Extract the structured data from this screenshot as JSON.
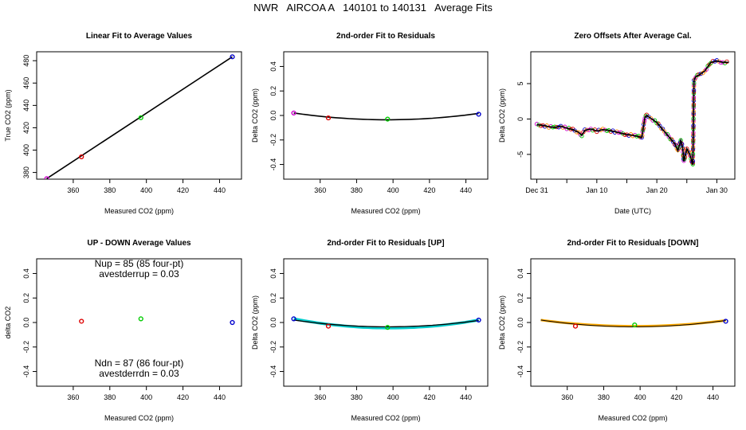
{
  "page": {
    "title": "NWR   AIRCOA A   140101 to 140131   Average Fits"
  },
  "chart_data": [
    {
      "id": "p1",
      "type": "scatter",
      "title": "Linear Fit to Average Values",
      "xlabel": "Measured CO2 (ppm)",
      "ylabel": "True CO2 (ppm)",
      "xlim": [
        340,
        452
      ],
      "ylim": [
        374,
        488
      ],
      "xticks": [
        360,
        380,
        400,
        420,
        440
      ],
      "xticklabels": [
        "360",
        "380",
        "400",
        "420",
        "440"
      ],
      "yticks": [
        380,
        400,
        420,
        440,
        460,
        480
      ],
      "yticklabels": [
        "380",
        "400",
        "420",
        "440",
        "460",
        "480"
      ],
      "lines": [
        {
          "name": "linear fit",
          "color": "#000000",
          "x": [
            345.5,
            447.0
          ],
          "y": [
            374.5,
            483.5
          ]
        }
      ],
      "points": [
        {
          "x": 345.5,
          "y": 374.5,
          "color": "#cc00cc"
        },
        {
          "x": 364.5,
          "y": 394.0,
          "color": "#dd0000"
        },
        {
          "x": 397.0,
          "y": 429.0,
          "color": "#00cc00"
        },
        {
          "x": 447.0,
          "y": 483.5,
          "color": "#0000cc"
        }
      ]
    },
    {
      "id": "p2",
      "type": "scatter",
      "title": "2nd-order Fit to Residuals",
      "xlabel": "Measured CO2 (ppm)",
      "ylabel": "Delta CO2 (ppm)",
      "xlim": [
        340,
        452
      ],
      "ylim": [
        -0.52,
        0.52
      ],
      "xticks": [
        360,
        380,
        400,
        420,
        440
      ],
      "xticklabels": [
        "360",
        "380",
        "400",
        "420",
        "440"
      ],
      "yticks": [
        -0.4,
        -0.2,
        0.0,
        0.2,
        0.4
      ],
      "yticklabels": [
        "-0.4",
        "-0.2",
        "0.0",
        "0.2",
        "0.4"
      ],
      "curves": [
        {
          "name": "2nd-order fit",
          "color": "#000000",
          "width": 1.6,
          "x": [
            345.5,
            447.0
          ],
          "y_end": [
            0.02,
            0.01
          ],
          "vertex_x": 397.0,
          "vertex_y": -0.035
        }
      ],
      "points": [
        {
          "x": 345.5,
          "y": 0.02,
          "color": "#cc00cc"
        },
        {
          "x": 364.5,
          "y": -0.02,
          "color": "#dd0000"
        },
        {
          "x": 397.0,
          "y": -0.03,
          "color": "#00cc00"
        },
        {
          "x": 447.0,
          "y": 0.01,
          "color": "#0000cc"
        }
      ]
    },
    {
      "id": "p3",
      "type": "line",
      "title": "Zero Offsets After Average Cal.",
      "xlabel": "Date (UTC)",
      "ylabel": "Delta CO2 (ppm)",
      "xlim": [
        -1,
        33
      ],
      "ylim": [
        -8.5,
        9.5
      ],
      "xticks": [
        0,
        10,
        20,
        30
      ],
      "xticklabels": [
        "Dec 31",
        "Jan 10",
        "Jan 20",
        "Jan 30"
      ],
      "minor_xticks": [
        5,
        15,
        25
      ],
      "yticks": [
        -5,
        0,
        5
      ],
      "yticklabels": [
        "-5",
        "0",
        "5"
      ],
      "series": [
        {
          "name": "zero offset",
          "color": "#000000",
          "x": [
            0,
            1,
            2,
            3,
            4,
            5,
            6,
            7,
            7.5,
            8,
            9,
            10,
            11,
            12,
            13,
            14,
            15,
            16,
            17,
            17.5,
            18,
            18.3,
            19,
            20,
            21,
            22,
            23,
            23.5,
            24,
            24.3,
            24.5,
            25,
            25.5,
            26,
            26.2,
            26.5,
            27,
            28,
            29,
            30,
            31,
            32
          ],
          "y": [
            -0.8,
            -0.9,
            -1.1,
            -1.2,
            -1.0,
            -1.3,
            -1.5,
            -1.9,
            -2.3,
            -1.6,
            -1.4,
            -1.7,
            -1.5,
            -1.6,
            -1.8,
            -2.0,
            -2.2,
            -2.3,
            -2.5,
            -2.6,
            0.2,
            0.5,
            0.1,
            -0.5,
            -1.5,
            -2.5,
            -3.5,
            -4.5,
            -3.0,
            -4.0,
            -6.0,
            -4.2,
            -5.0,
            -6.5,
            5.5,
            6.0,
            6.2,
            6.8,
            8.0,
            8.2,
            8.0,
            8.0
          ]
        }
      ],
      "overlay_points": {
        "colors": [
          "#cc00cc",
          "#00cc00",
          "#dd0000",
          "#0000cc",
          "#ff8800"
        ]
      }
    },
    {
      "id": "p4",
      "type": "scatter",
      "title": "UP - DOWN Average Values",
      "xlabel": "Measured CO2 (ppm)",
      "ylabel": "delta CO2",
      "xlim": [
        340,
        452
      ],
      "ylim": [
        -0.52,
        0.52
      ],
      "xticks": [
        360,
        380,
        400,
        420,
        440
      ],
      "xticklabels": [
        "360",
        "380",
        "400",
        "420",
        "440"
      ],
      "yticks": [
        -0.4,
        -0.2,
        0.0,
        0.2,
        0.4
      ],
      "yticklabels": [
        "-0.4",
        "-0.2",
        "0.0",
        "0.2",
        "0.4"
      ],
      "annotations": [
        "Nup = 85 (85 four-pt)",
        "avestderrup =  0.03",
        "Ndn = 87 (86 four-pt)",
        "avestderrdn =  0.03"
      ],
      "points": [
        {
          "x": 364.5,
          "y": 0.01,
          "color": "#dd0000"
        },
        {
          "x": 397.0,
          "y": 0.03,
          "color": "#00cc00"
        },
        {
          "x": 447.0,
          "y": 0.0,
          "color": "#0000cc"
        }
      ]
    },
    {
      "id": "p5",
      "type": "scatter",
      "title": "2nd-order Fit to Residuals [UP]",
      "xlabel": "Measured CO2 (ppm)",
      "ylabel": "Delta CO2 (ppm)",
      "xlim": [
        340,
        452
      ],
      "ylim": [
        -0.52,
        0.52
      ],
      "xticks": [
        360,
        380,
        400,
        420,
        440
      ],
      "xticklabels": [
        "360",
        "380",
        "400",
        "420",
        "440"
      ],
      "yticks": [
        -0.4,
        -0.2,
        0.0,
        0.2,
        0.4
      ],
      "yticklabels": [
        "-0.4",
        "-0.2",
        "0.0",
        "0.2",
        "0.4"
      ],
      "curves": [
        {
          "name": "fit UP",
          "color": "#00cccc",
          "width": 3.5,
          "x": [
            345.5,
            447.0
          ],
          "y_end": [
            0.03,
            0.02
          ],
          "vertex_x": 398.0,
          "vertex_y": -0.045
        },
        {
          "name": "fit all",
          "color": "#000000",
          "width": 1.3,
          "x": [
            345.5,
            447.0
          ],
          "y_end": [
            0.02,
            0.01
          ],
          "vertex_x": 397.0,
          "vertex_y": -0.035
        }
      ],
      "points": [
        {
          "x": 345.5,
          "y": 0.03,
          "color": "#0000cc"
        },
        {
          "x": 364.5,
          "y": -0.03,
          "color": "#dd0000"
        },
        {
          "x": 397.0,
          "y": -0.04,
          "color": "#00cc00"
        },
        {
          "x": 447.0,
          "y": 0.02,
          "color": "#0000cc"
        }
      ]
    },
    {
      "id": "p6",
      "type": "scatter",
      "title": "2nd-order Fit to Residuals [DOWN]",
      "xlabel": "Measured CO2 (ppm)",
      "ylabel": "Delta CO2 (ppm)",
      "xlim": [
        340,
        452
      ],
      "ylim": [
        -0.52,
        0.52
      ],
      "xticks": [
        360,
        380,
        400,
        420,
        440
      ],
      "xticklabels": [
        "360",
        "380",
        "400",
        "420",
        "440"
      ],
      "yticks": [
        -0.4,
        -0.2,
        0.0,
        0.2,
        0.4
      ],
      "yticklabels": [
        "-0.4",
        "-0.2",
        "0.0",
        "0.2",
        "0.4"
      ],
      "curves": [
        {
          "name": "fit DOWN",
          "color": "#ffaa00",
          "width": 3.0,
          "x": [
            345.5,
            447.0
          ],
          "y_end": [
            0.02,
            0.01
          ],
          "vertex_x": 397.0,
          "vertex_y": -0.03
        },
        {
          "name": "fit all",
          "color": "#000000",
          "width": 1.0,
          "x": [
            345.5,
            447.0
          ],
          "y_end": [
            0.02,
            0.01
          ],
          "vertex_x": 397.0,
          "vertex_y": -0.035
        }
      ],
      "points": [
        {
          "x": 364.5,
          "y": -0.03,
          "color": "#dd0000"
        },
        {
          "x": 397.0,
          "y": -0.02,
          "color": "#00cc00"
        },
        {
          "x": 447.0,
          "y": 0.01,
          "color": "#0000cc"
        }
      ]
    }
  ]
}
